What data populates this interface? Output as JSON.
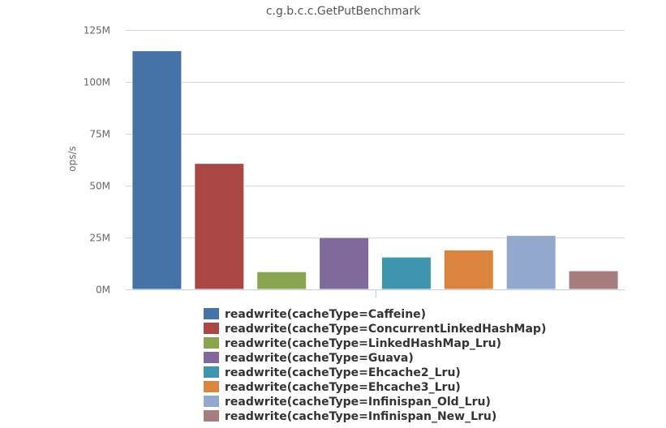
{
  "chart_data": {
    "type": "bar",
    "title": "c.g.b.c.c.GetPutBenchmark",
    "xlabel": "",
    "ylabel": "ops/s",
    "ylim": [
      0,
      125000000
    ],
    "yticks": [
      0,
      25000000,
      50000000,
      75000000,
      100000000,
      125000000
    ],
    "ytick_labels": [
      "0M",
      "25M",
      "50M",
      "75M",
      "100M",
      "125M"
    ],
    "grid": true,
    "legend_position": "bottom",
    "series": [
      {
        "name": "readwrite(cacheType=Caffeine)",
        "value": 115000000,
        "color": "#4572A7"
      },
      {
        "name": "readwrite(cacheType=ConcurrentLinkedHashMap)",
        "value": 60700000,
        "color": "#AA4643"
      },
      {
        "name": "readwrite(cacheType=LinkedHashMap_Lru)",
        "value": 8500000,
        "color": "#89A54E"
      },
      {
        "name": "readwrite(cacheType=Guava)",
        "value": 25000000,
        "color": "#80699B"
      },
      {
        "name": "readwrite(cacheType=Ehcache2_Lru)",
        "value": 15600000,
        "color": "#3D96AE"
      },
      {
        "name": "readwrite(cacheType=Ehcache3_Lru)",
        "value": 19000000,
        "color": "#DB843D"
      },
      {
        "name": "readwrite(cacheType=Infinispan_Old_Lru)",
        "value": 26000000,
        "color": "#92A8CD"
      },
      {
        "name": "readwrite(cacheType=Infinispan_New_Lru)",
        "value": 9000000,
        "color": "#A47D7C"
      }
    ]
  }
}
